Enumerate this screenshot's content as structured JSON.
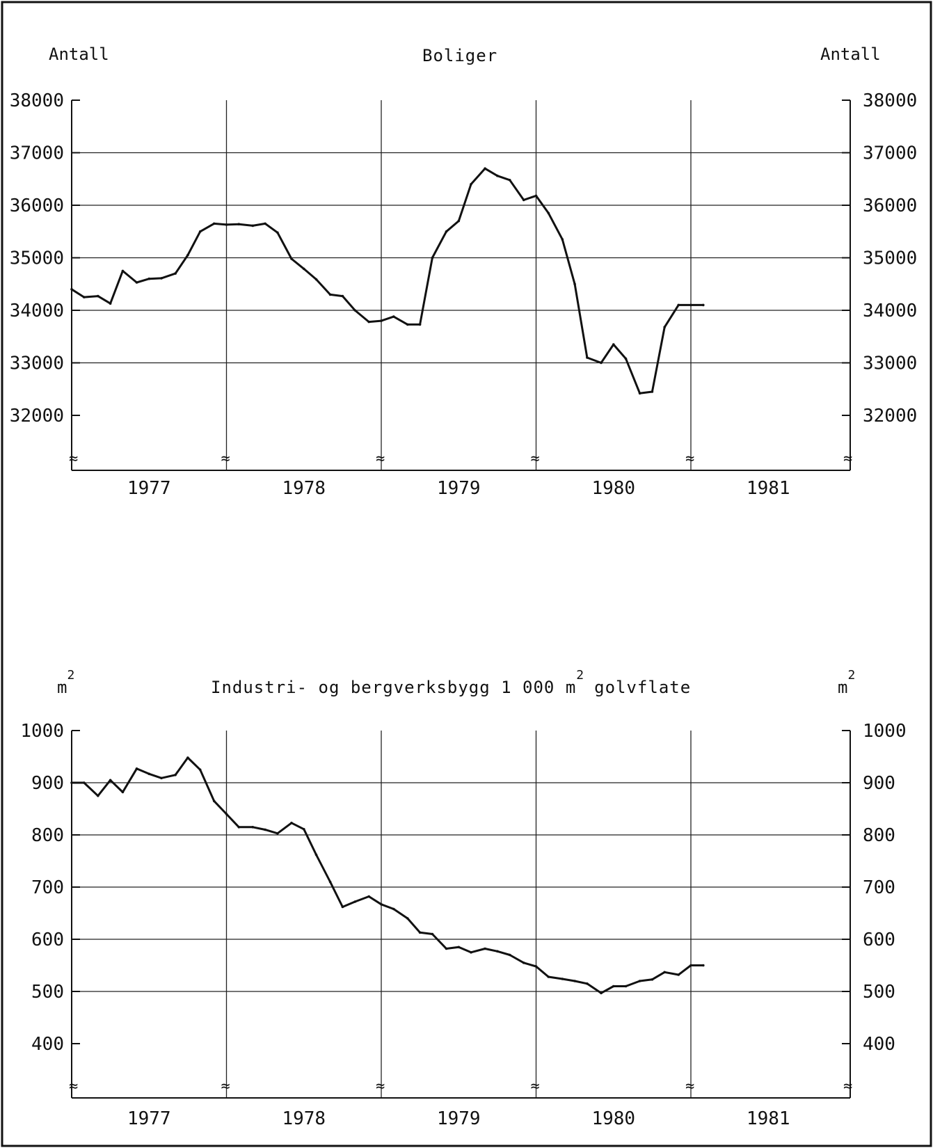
{
  "charts": [
    {
      "id": "boliger",
      "title": "Boliger",
      "left_unit": "Antall",
      "right_unit": "Antall",
      "y_ticks": [
        "38000",
        "37000",
        "36000",
        "35000",
        "34000",
        "33000",
        "32000"
      ],
      "years": [
        "1977",
        "1978",
        "1979",
        "1980",
        "1981"
      ]
    },
    {
      "id": "industri",
      "title": "Industri- og bergverksbygg 1 000 m",
      "title_sup": "2",
      "title_end": "golvflate",
      "left_unit": "m",
      "left_unit_sup": "2",
      "right_unit": "m",
      "right_unit_sup": "2",
      "y_ticks": [
        "1000",
        "900",
        "800",
        "700",
        "600",
        "500",
        "400"
      ],
      "years": [
        "1977",
        "1978",
        "1979",
        "1980",
        "1981"
      ]
    }
  ],
  "chart_data": [
    {
      "type": "line",
      "title": "Boliger",
      "ylabel": "Antall",
      "ylim": [
        31300,
        38000
      ],
      "xlim": [
        1977.0,
        1982.0
      ],
      "grid": true,
      "series": [
        {
          "x": [
            1977.0,
            1977.08,
            1977.17,
            1977.25,
            1977.33,
            1977.42,
            1977.5,
            1977.58,
            1977.67,
            1977.75,
            1977.83,
            1977.92,
            1978.0,
            1978.08,
            1978.17,
            1978.25,
            1978.33,
            1978.42,
            1978.5,
            1978.58,
            1978.67,
            1978.75,
            1978.83,
            1978.92,
            1979.0,
            1979.08,
            1979.17,
            1979.25,
            1979.33,
            1979.42,
            1979.5,
            1979.58,
            1979.67,
            1979.75,
            1979.83,
            1979.92,
            1980.0,
            1980.08,
            1980.17,
            1980.25,
            1980.33,
            1980.42,
            1980.5,
            1980.58,
            1980.67,
            1980.75,
            1980.83,
            1980.92,
            1981.0,
            1981.08
          ],
          "values": [
            34400,
            34250,
            34270,
            34130,
            34750,
            34530,
            34600,
            34610,
            34700,
            35050,
            35500,
            35650,
            35630,
            35640,
            35610,
            35650,
            35480,
            34980,
            34790,
            34590,
            34300,
            34270,
            34000,
            33780,
            33800,
            33880,
            33730,
            33730,
            35000,
            35500,
            35700,
            36400,
            36700,
            36560,
            36480,
            36100,
            36180,
            35850,
            35350,
            34500,
            33100,
            33000,
            33350,
            33080,
            32420,
            32450,
            33680,
            34100,
            34100,
            34100
          ]
        }
      ]
    },
    {
      "type": "line",
      "title": "Industri- og bergverksbygg 1 000 m2 golvflate",
      "ylabel": "m2",
      "ylim": [
        300,
        1000
      ],
      "xlim": [
        1977.0,
        1982.0
      ],
      "grid": true,
      "series": [
        {
          "x": [
            1977.0,
            1977.08,
            1977.17,
            1977.25,
            1977.33,
            1977.42,
            1977.5,
            1977.58,
            1977.67,
            1977.75,
            1977.83,
            1977.92,
            1978.0,
            1978.08,
            1978.17,
            1978.25,
            1978.33,
            1978.42,
            1978.5,
            1978.58,
            1978.67,
            1978.75,
            1978.83,
            1978.92,
            1979.0,
            1979.08,
            1979.17,
            1979.25,
            1979.33,
            1979.42,
            1979.5,
            1979.58,
            1979.67,
            1979.75,
            1979.83,
            1979.92,
            1980.0,
            1980.08,
            1980.17,
            1980.25,
            1980.33,
            1980.42,
            1980.5,
            1980.58,
            1980.67,
            1980.75,
            1980.83,
            1980.92,
            1981.0,
            1981.08
          ],
          "values": [
            900,
            900,
            875,
            905,
            882,
            927,
            917,
            909,
            915,
            948,
            925,
            865,
            840,
            815,
            815,
            810,
            803,
            823,
            811,
            762,
            710,
            662,
            672,
            682,
            667,
            658,
            640,
            613,
            610,
            582,
            585,
            575,
            582,
            577,
            570,
            555,
            548,
            528,
            524,
            520,
            515,
            497,
            510,
            510,
            520,
            523,
            537,
            532,
            550,
            550
          ]
        }
      ]
    }
  ]
}
